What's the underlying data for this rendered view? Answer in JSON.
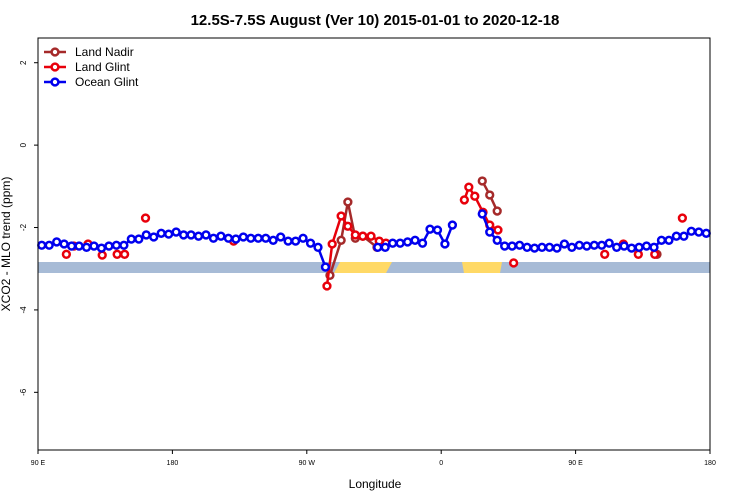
{
  "chart_data": {
    "type": "line",
    "title": "12.5S-7.5S August (Ver 10)   2015-01-01 to 2020-12-18",
    "x_label": "Longitude",
    "y_label": "XCO2 - MLO trend (ppm)",
    "xlim": [
      90,
      540
    ],
    "xticks": [
      {
        "value": 90,
        "label": "90 E"
      },
      180,
      {
        "value": 270,
        "label": "90 W"
      },
      {
        "value": 360,
        "label": "0"
      },
      {
        "value": 450,
        "label": "90 E"
      },
      {
        "value": 540,
        "label": "180"
      }
    ],
    "ylim": [
      -7.4,
      2.6
    ],
    "yticks": [
      2,
      0,
      -2,
      -4,
      -6
    ],
    "legend": "top-left",
    "series": [
      {
        "name": "Land Nadir",
        "color": "#a52a2a",
        "x": [
          285.5,
          293,
          297.5,
          302.5,
          307.5,
          317,
          null,
          387.5,
          392.5,
          397.5,
          null,
          504.5
        ],
        "values": [
          -3.16,
          -2.31,
          -1.38,
          -2.26,
          -2.21,
          -2.48,
          null,
          -0.87,
          -1.21,
          -1.6,
          null,
          -2.65
        ]
      },
      {
        "name": "Land Glint",
        "color": "#e8000b",
        "x": [
          109,
          null,
          114,
          null,
          123.5,
          null,
          133,
          null,
          143,
          null,
          148,
          null,
          162,
          null,
          221,
          null,
          283.5,
          287,
          293,
          297.5,
          302.5,
          307.5,
          313,
          318.5,
          323,
          null,
          375.5,
          378.5,
          382.5,
          388,
          392.5,
          398,
          null,
          408.5,
          null,
          469.5,
          null,
          482,
          null,
          492,
          null,
          503,
          null,
          521.5
        ],
        "values": [
          -2.65,
          null,
          -2.45,
          null,
          -2.4,
          null,
          -2.67,
          null,
          -2.65,
          null,
          -2.65,
          null,
          -1.77,
          null,
          -2.33,
          null,
          -3.42,
          -2.4,
          -1.72,
          -1.97,
          -2.18,
          -2.21,
          -2.21,
          -2.33,
          -2.38,
          null,
          -1.33,
          -1.02,
          -1.24,
          -1.63,
          -1.94,
          -2.06,
          null,
          -2.86,
          null,
          -2.65,
          null,
          -2.4,
          null,
          -2.65,
          null,
          -2.65,
          null,
          -1.77
        ]
      },
      {
        "name": "Ocean Glint",
        "color": "#0000ee",
        "x": [
          92.5,
          97.5,
          102.5,
          107.5,
          112.5,
          117.5,
          122.5,
          127.5,
          132.5,
          137.5,
          142.5,
          147.5,
          152.5,
          157.5,
          162.5,
          167.5,
          172.5,
          177.5,
          182.5,
          187.5,
          192.5,
          197.5,
          202.5,
          207.5,
          212.5,
          217.5,
          222.5,
          227.5,
          232.5,
          237.5,
          242.5,
          247.5,
          252.5,
          257.5,
          262.5,
          267.5,
          272.5,
          277.5,
          282.5,
          null,
          317.5,
          322.5,
          327.5,
          332.5,
          337.5,
          342.5,
          347.5,
          352.5,
          357.5,
          362.5,
          367.5,
          null,
          387.5,
          392.5,
          397.5,
          402.5,
          407.5,
          412.5,
          417.5,
          422.5,
          427.5,
          432.5,
          437.5,
          442.5,
          447.5,
          452.5,
          457.5,
          462.5,
          467.5,
          472.5,
          477.5,
          482.5,
          487.5,
          492.5,
          497.5,
          502.5,
          507.5,
          512.5,
          517.5,
          522.5,
          527.5,
          532.5,
          537.5
        ],
        "values": [
          -2.43,
          -2.43,
          -2.35,
          -2.4,
          -2.45,
          -2.45,
          -2.48,
          -2.45,
          -2.5,
          -2.45,
          -2.43,
          -2.43,
          -2.28,
          -2.28,
          -2.18,
          -2.23,
          -2.14,
          -2.16,
          -2.11,
          -2.18,
          -2.18,
          -2.21,
          -2.18,
          -2.26,
          -2.21,
          -2.26,
          -2.28,
          -2.23,
          -2.26,
          -2.26,
          -2.26,
          -2.31,
          -2.23,
          -2.33,
          -2.33,
          -2.26,
          -2.38,
          -2.48,
          -2.96,
          null,
          -2.48,
          -2.48,
          -2.38,
          -2.38,
          -2.35,
          -2.31,
          -2.38,
          -2.04,
          -2.06,
          -2.4,
          -1.94,
          null,
          -1.67,
          -2.11,
          -2.31,
          -2.45,
          -2.45,
          -2.43,
          -2.48,
          -2.5,
          -2.48,
          -2.48,
          -2.5,
          -2.4,
          -2.48,
          -2.43,
          -2.45,
          -2.43,
          -2.43,
          -2.38,
          -2.48,
          -2.45,
          -2.5,
          -2.48,
          -2.45,
          -2.48,
          -2.31,
          -2.31,
          -2.21,
          -2.21,
          -2.09,
          -2.11,
          -2.14
        ]
      }
    ]
  }
}
